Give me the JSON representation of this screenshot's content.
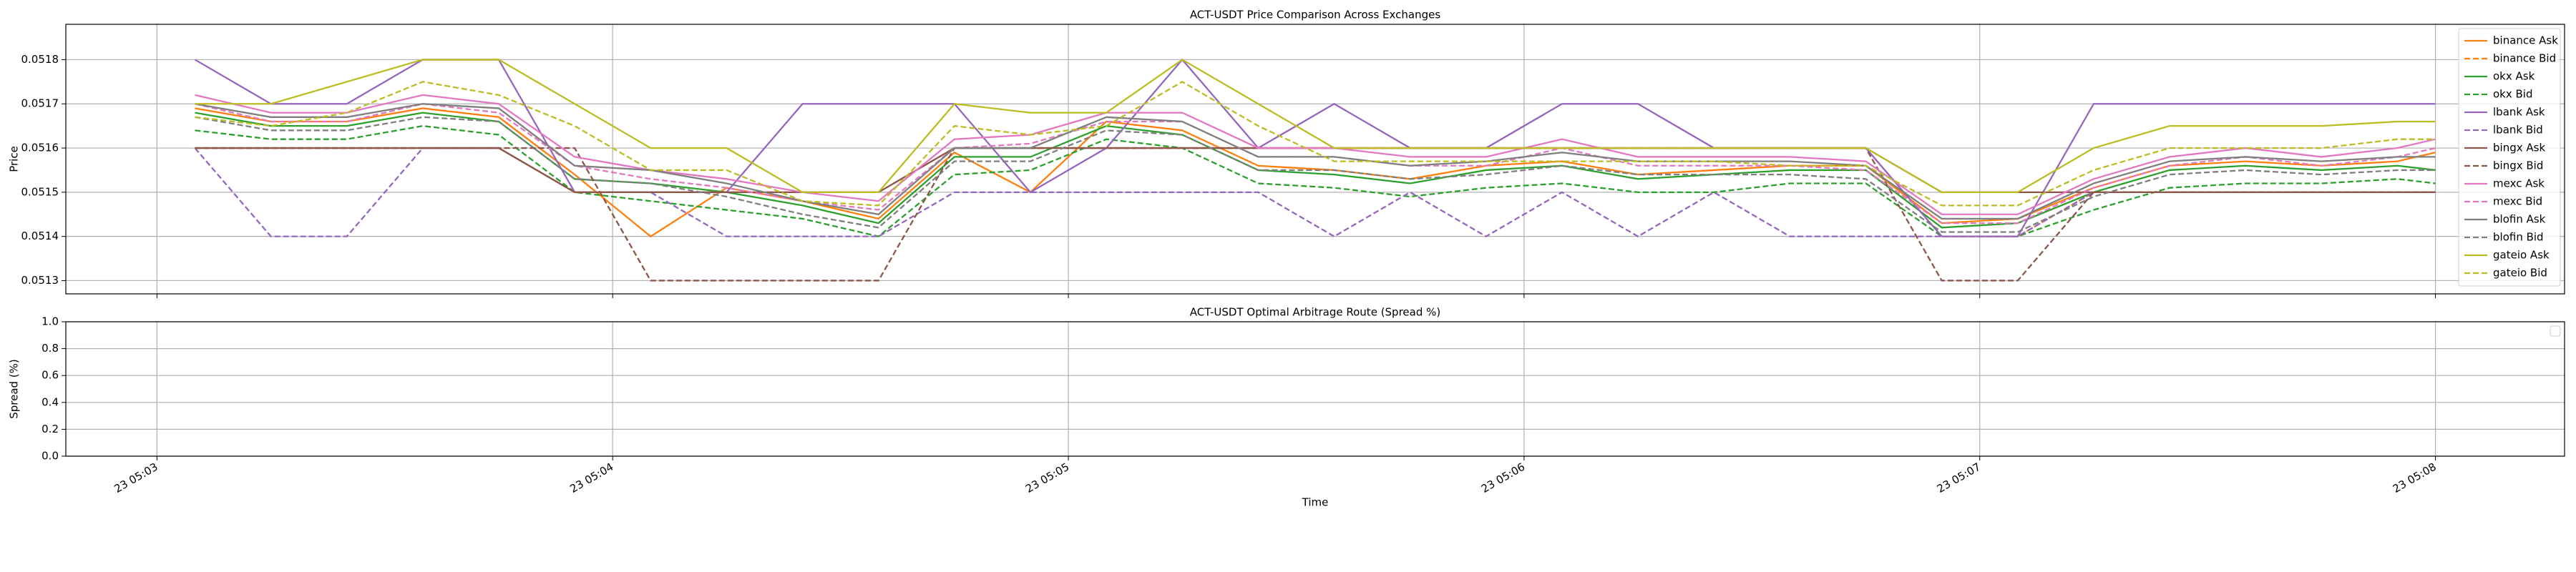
{
  "chart_data": [
    {
      "type": "line",
      "title": "ACT-USDT Price Comparison Across Exchanges",
      "ylabel": "Price",
      "grid": true,
      "legend": "upper right",
      "xlim": [
        "23 05:02:48",
        "23 05:08:17"
      ],
      "ylim": [
        0.05127,
        0.05188
      ],
      "yticks": [
        0.0513,
        0.0514,
        0.0515,
        0.0516,
        0.0517,
        0.0518
      ],
      "x": [
        "23 05:03:05",
        "23 05:03:15",
        "23 05:03:25",
        "23 05:03:35",
        "23 05:03:45",
        "23 05:03:55",
        "23 05:04:05",
        "23 05:04:15",
        "23 05:04:25",
        "23 05:04:35",
        "23 05:04:45",
        "23 05:04:55",
        "23 05:05:05",
        "23 05:05:15",
        "23 05:05:25",
        "23 05:05:35",
        "23 05:05:45",
        "23 05:05:55",
        "23 05:06:05",
        "23 05:06:15",
        "23 05:06:25",
        "23 05:06:35",
        "23 05:06:45",
        "23 05:06:55",
        "23 05:07:05",
        "23 05:07:15",
        "23 05:07:25",
        "23 05:07:35",
        "23 05:07:45",
        "23 05:07:55",
        "23 05:08:00"
      ],
      "series": [
        {
          "name": "binance Ask",
          "color": "#ff7f0e",
          "dash": false,
          "values": [
            0.05169,
            0.05166,
            0.05166,
            0.05169,
            0.05167,
            0.05154,
            0.0514,
            0.05151,
            0.05148,
            0.05144,
            0.05159,
            0.0515,
            0.05166,
            0.05164,
            0.05156,
            0.05155,
            0.05153,
            0.05156,
            0.05157,
            0.05154,
            0.05155,
            0.05156,
            0.05156,
            0.05143,
            0.05144,
            0.05151,
            0.05156,
            0.05157,
            0.05156,
            0.05157,
            0.05159
          ]
        },
        {
          "name": "binance Bid",
          "color": "#ff7f0e",
          "dash": true,
          "values": [
            0.0516,
            0.0516,
            0.0516,
            0.0516,
            0.0516,
            0.0515,
            0.0515,
            0.0515,
            0.0515,
            0.0515,
            0.0516,
            0.0516,
            0.0516,
            0.0516,
            0.0516,
            0.0516,
            0.0516,
            0.0516,
            0.0516,
            0.0516,
            0.0516,
            0.0516,
            0.0516,
            0.0514,
            0.0514,
            0.0515,
            0.0515,
            0.0515,
            0.0515,
            0.0515,
            0.0515
          ]
        },
        {
          "name": "okx Ask",
          "color": "#2ca02c",
          "dash": false,
          "values": [
            0.05168,
            0.05165,
            0.05165,
            0.05168,
            0.05166,
            0.05153,
            0.05152,
            0.0515,
            0.05147,
            0.05143,
            0.05158,
            0.05158,
            0.05165,
            0.05163,
            0.05155,
            0.05154,
            0.05152,
            0.05155,
            0.05156,
            0.05153,
            0.05154,
            0.05155,
            0.05155,
            0.05142,
            0.05143,
            0.0515,
            0.05155,
            0.05156,
            0.05155,
            0.05156,
            0.05155
          ]
        },
        {
          "name": "okx Bid",
          "color": "#2ca02c",
          "dash": true,
          "values": [
            0.05164,
            0.05162,
            0.05162,
            0.05165,
            0.05163,
            0.0515,
            0.05148,
            0.05146,
            0.05144,
            0.0514,
            0.05154,
            0.05155,
            0.05162,
            0.0516,
            0.05152,
            0.05151,
            0.05149,
            0.05151,
            0.05152,
            0.0515,
            0.0515,
            0.05152,
            0.05152,
            0.0514,
            0.0514,
            0.05146,
            0.05151,
            0.05152,
            0.05152,
            0.05153,
            0.05152
          ]
        },
        {
          "name": "lbank Ask",
          "color": "#9467bd",
          "dash": false,
          "values": [
            0.0518,
            0.0517,
            0.0517,
            0.0518,
            0.0518,
            0.0515,
            0.0515,
            0.0515,
            0.0517,
            0.0517,
            0.0517,
            0.0515,
            0.0516,
            0.0518,
            0.0516,
            0.0517,
            0.0516,
            0.0516,
            0.0517,
            0.0517,
            0.0516,
            0.0516,
            0.0516,
            0.0514,
            0.0514,
            0.0517,
            0.0517,
            0.0517,
            0.0517,
            0.0517,
            0.0517
          ]
        },
        {
          "name": "lbank Bid",
          "color": "#9467bd",
          "dash": true,
          "values": [
            0.0516,
            0.0514,
            0.0514,
            0.0516,
            0.0516,
            0.0515,
            0.0515,
            0.0514,
            0.0514,
            0.0514,
            0.0515,
            0.0515,
            0.0515,
            0.0515,
            0.0515,
            0.0514,
            0.0515,
            0.0514,
            0.0515,
            0.0514,
            0.0515,
            0.0514,
            0.0514,
            0.0514,
            0.0514,
            0.0515,
            0.0515,
            0.0515,
            0.0515,
            0.0515,
            0.0515
          ]
        },
        {
          "name": "bingx Ask",
          "color": "#8c564b",
          "dash": false,
          "values": [
            0.0516,
            0.0516,
            0.0516,
            0.0516,
            0.0516,
            0.0515,
            0.0515,
            0.0515,
            0.0515,
            0.0515,
            0.0516,
            0.0516,
            0.0516,
            0.0516,
            0.0516,
            0.0516,
            0.0516,
            0.0516,
            0.0516,
            0.0516,
            0.0516,
            0.0516,
            0.0516,
            0.0515,
            0.0515,
            0.0515,
            0.0515,
            0.0515,
            0.0515,
            0.0515,
            0.0515
          ]
        },
        {
          "name": "bingx Bid",
          "color": "#8c564b",
          "dash": true,
          "values": [
            0.0516,
            0.0516,
            0.0516,
            0.0516,
            0.0516,
            0.0516,
            0.0513,
            0.0513,
            0.0513,
            0.0513,
            0.0516,
            0.0516,
            0.0516,
            0.0516,
            0.0516,
            0.0516,
            0.0516,
            0.0516,
            0.0516,
            0.0516,
            0.0516,
            0.0516,
            0.0516,
            0.0513,
            0.0513,
            0.0515,
            0.0515,
            0.0515,
            0.0515,
            0.0515,
            0.0515
          ]
        },
        {
          "name": "mexc Ask",
          "color": "#e377c2",
          "dash": false,
          "values": [
            0.05172,
            0.05168,
            0.05168,
            0.05172,
            0.0517,
            0.05158,
            0.05155,
            0.05153,
            0.0515,
            0.05148,
            0.05162,
            0.05163,
            0.05168,
            0.05168,
            0.0516,
            0.0516,
            0.05158,
            0.05158,
            0.05162,
            0.05158,
            0.05158,
            0.05158,
            0.05157,
            0.05145,
            0.05145,
            0.05153,
            0.05158,
            0.0516,
            0.05158,
            0.0516,
            0.05162
          ]
        },
        {
          "name": "mexc Bid",
          "color": "#e377c2",
          "dash": true,
          "values": [
            0.0517,
            0.05166,
            0.05166,
            0.0517,
            0.05168,
            0.05156,
            0.05153,
            0.05151,
            0.05148,
            0.05146,
            0.0516,
            0.05161,
            0.05166,
            0.05166,
            0.05158,
            0.05158,
            0.05156,
            0.05156,
            0.0516,
            0.05156,
            0.05156,
            0.05156,
            0.05155,
            0.05143,
            0.05143,
            0.05151,
            0.05156,
            0.05158,
            0.05156,
            0.05158,
            0.0516
          ]
        },
        {
          "name": "blofin Ask",
          "color": "#7f7f7f",
          "dash": false,
          "values": [
            0.0517,
            0.05167,
            0.05167,
            0.0517,
            0.05169,
            0.05156,
            0.05155,
            0.05152,
            0.05148,
            0.05145,
            0.0516,
            0.0516,
            0.05167,
            0.05166,
            0.05158,
            0.05158,
            0.05156,
            0.05157,
            0.05159,
            0.05157,
            0.05157,
            0.05157,
            0.05156,
            0.05144,
            0.05144,
            0.05152,
            0.05157,
            0.05158,
            0.05157,
            0.05158,
            0.05158
          ]
        },
        {
          "name": "blofin Bid",
          "color": "#7f7f7f",
          "dash": true,
          "values": [
            0.05167,
            0.05164,
            0.05164,
            0.05167,
            0.05166,
            0.05153,
            0.05152,
            0.05149,
            0.05145,
            0.05142,
            0.05157,
            0.05157,
            0.05164,
            0.05163,
            0.05155,
            0.05155,
            0.05153,
            0.05154,
            0.05156,
            0.05154,
            0.05154,
            0.05154,
            0.05153,
            0.05141,
            0.05141,
            0.05149,
            0.05154,
            0.05155,
            0.05154,
            0.05155,
            0.05155
          ]
        },
        {
          "name": "gateio Ask",
          "color": "#bcbd22",
          "dash": false,
          "values": [
            0.0517,
            0.0517,
            0.05175,
            0.0518,
            0.0518,
            0.0517,
            0.0516,
            0.0516,
            0.0515,
            0.0515,
            0.0517,
            0.05168,
            0.05168,
            0.0518,
            0.0517,
            0.0516,
            0.0516,
            0.0516,
            0.0516,
            0.0516,
            0.0516,
            0.0516,
            0.0516,
            0.0515,
            0.0515,
            0.0516,
            0.05165,
            0.05165,
            0.05165,
            0.05166,
            0.05166
          ]
        },
        {
          "name": "gateio Bid",
          "color": "#bcbd22",
          "dash": true,
          "values": [
            0.05167,
            0.05165,
            0.05168,
            0.05175,
            0.05172,
            0.05165,
            0.05155,
            0.05155,
            0.05148,
            0.05147,
            0.05165,
            0.05163,
            0.05165,
            0.05175,
            0.05165,
            0.05157,
            0.05157,
            0.05157,
            0.05157,
            0.05157,
            0.05157,
            0.05156,
            0.05156,
            0.05147,
            0.05147,
            0.05155,
            0.0516,
            0.0516,
            0.0516,
            0.05162,
            0.05162
          ]
        }
      ]
    },
    {
      "type": "line",
      "title": "ACT-USDT Optimal Arbitrage Route (Spread %)",
      "ylabel": "Spread (%)",
      "xlabel": "Time",
      "grid": true,
      "xlim": [
        "23 05:02:48",
        "23 05:08:17"
      ],
      "ylim": [
        0,
        1
      ],
      "yticks": [
        {
          "value": 0,
          "label": "0.0"
        },
        0.2,
        0.4,
        0.6,
        0.8,
        {
          "value": 1,
          "label": "1.0"
        }
      ],
      "xticks": [
        "23 05:03",
        "23 05:04",
        "23 05:05",
        "23 05:06",
        "23 05:07",
        "23 05:08"
      ],
      "series": []
    }
  ]
}
